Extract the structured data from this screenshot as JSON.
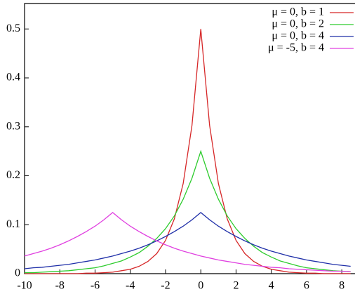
{
  "chart_data": {
    "type": "line",
    "x": [
      -10,
      -9.5,
      -9,
      -8.5,
      -8,
      -7.5,
      -7,
      -6.5,
      -6,
      -5.5,
      -5,
      -4.5,
      -4,
      -3.5,
      -3,
      -2.5,
      -2,
      -1.5,
      -1,
      -0.5,
      0,
      0.5,
      1,
      1.5,
      2,
      2.5,
      3,
      3.5,
      4,
      4.5,
      5,
      5.5,
      6,
      6.5,
      7,
      7.5,
      8,
      8.5
    ],
    "series": [
      {
        "name": "μ =  0, b = 1",
        "color": "#d62728",
        "values": [
          0,
          0,
          0,
          0,
          0,
          0,
          0,
          0.001,
          0.001,
          0.002,
          0.003,
          0.006,
          0.009,
          0.015,
          0.025,
          0.041,
          0.068,
          0.112,
          0.184,
          0.303,
          0.5,
          0.303,
          0.184,
          0.112,
          0.068,
          0.041,
          0.025,
          0.015,
          0.009,
          0.006,
          0.003,
          0.002,
          0.001,
          0.001,
          0,
          0,
          0,
          0
        ]
      },
      {
        "name": "μ =  0, b = 2",
        "color": "#2ecc2e",
        "values": [
          0.002,
          0.002,
          0.003,
          0.004,
          0.005,
          0.006,
          0.008,
          0.01,
          0.012,
          0.016,
          0.021,
          0.026,
          0.034,
          0.043,
          0.056,
          0.072,
          0.092,
          0.118,
          0.152,
          0.195,
          0.25,
          0.195,
          0.152,
          0.118,
          0.092,
          0.072,
          0.056,
          0.043,
          0.034,
          0.026,
          0.021,
          0.016,
          0.012,
          0.01,
          0.008,
          0.006,
          0.005,
          0.004
        ]
      },
      {
        "name": "μ =  0, b = 4",
        "color": "#1f2fa8",
        "values": [
          0.01,
          0.012,
          0.013,
          0.015,
          0.017,
          0.019,
          0.022,
          0.025,
          0.028,
          0.032,
          0.036,
          0.041,
          0.046,
          0.052,
          0.059,
          0.067,
          0.076,
          0.086,
          0.097,
          0.11,
          0.125,
          0.11,
          0.097,
          0.086,
          0.076,
          0.067,
          0.059,
          0.052,
          0.046,
          0.041,
          0.036,
          0.032,
          0.028,
          0.025,
          0.022,
          0.019,
          0.017,
          0.015
        ]
      },
      {
        "name": "μ = -5, b = 4",
        "color": "#e040e0",
        "values": [
          0.036,
          0.041,
          0.046,
          0.052,
          0.059,
          0.067,
          0.076,
          0.086,
          0.097,
          0.11,
          0.125,
          0.11,
          0.097,
          0.086,
          0.076,
          0.067,
          0.059,
          0.052,
          0.046,
          0.041,
          0.036,
          0.032,
          0.028,
          0.025,
          0.022,
          0.019,
          0.017,
          0.015,
          0.013,
          0.012,
          0.01,
          0.009,
          0.008,
          0.007,
          0.006,
          0.005,
          0.005,
          0.004
        ]
      }
    ],
    "xlim": [
      -10,
      8.75
    ],
    "ylim": [
      0,
      0.552
    ],
    "xticks": [
      -10,
      -8,
      -6,
      -4,
      -2,
      0,
      2,
      4,
      6,
      8
    ],
    "yticks": [
      0,
      0.1,
      0.2,
      0.3,
      0.4,
      0.5
    ],
    "legend": "upper-right"
  }
}
